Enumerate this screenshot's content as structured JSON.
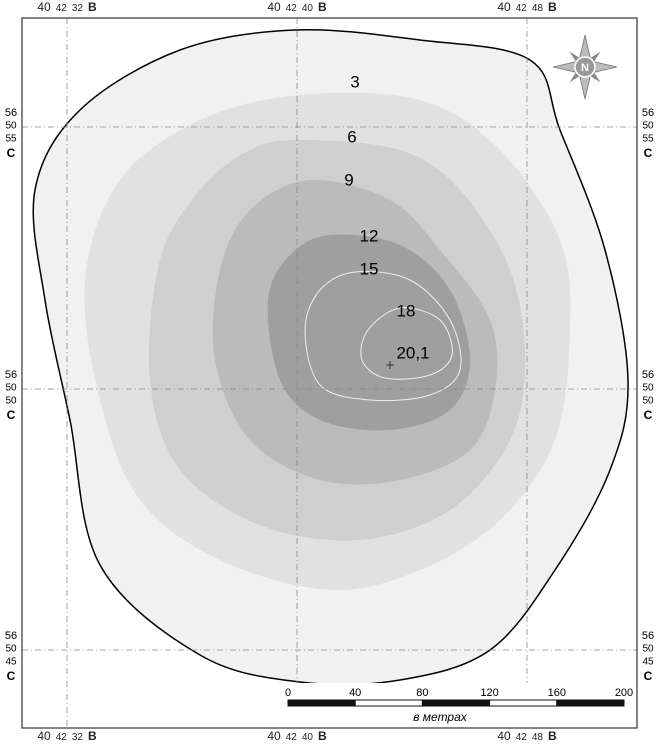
{
  "longitude_labels": [
    {
      "deg": "40",
      "min": "42",
      "sec": "32",
      "dir": "B"
    },
    {
      "deg": "40",
      "min": "42",
      "sec": "40",
      "dir": "B"
    },
    {
      "deg": "40",
      "min": "42",
      "sec": "48",
      "dir": "B"
    }
  ],
  "latitude_labels": [
    {
      "deg": "56",
      "min": "50",
      "sec": "55",
      "dir": "C"
    },
    {
      "deg": "56",
      "min": "50",
      "sec": "50",
      "dir": "C"
    },
    {
      "deg": "56",
      "min": "50",
      "sec": "45",
      "dir": "C"
    }
  ],
  "contours": [
    3,
    6,
    9,
    12,
    15,
    18
  ],
  "max_point": "20,1",
  "compass": "N",
  "scale_bar": {
    "ticks": [
      0,
      40,
      80,
      120,
      160,
      200
    ],
    "unit": "в метрах"
  }
}
